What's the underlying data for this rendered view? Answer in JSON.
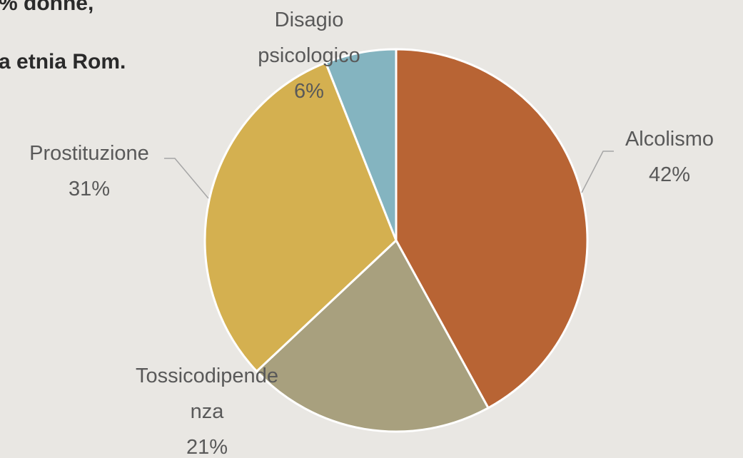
{
  "texts": [
    "% donne,",
    "a etnia Rom."
  ],
  "chart_data": {
    "type": "pie",
    "categories": [
      "Alcolismo",
      "Tossicodipendenza",
      "Prostituzione",
      "Disagio psicologico"
    ],
    "values": [
      42,
      21,
      31,
      6
    ],
    "value_labels": [
      "42%",
      "21%",
      "31%",
      "6%"
    ],
    "colors": [
      "#b86434",
      "#a8a07e",
      "#d4b050",
      "#84b4c0"
    ]
  }
}
